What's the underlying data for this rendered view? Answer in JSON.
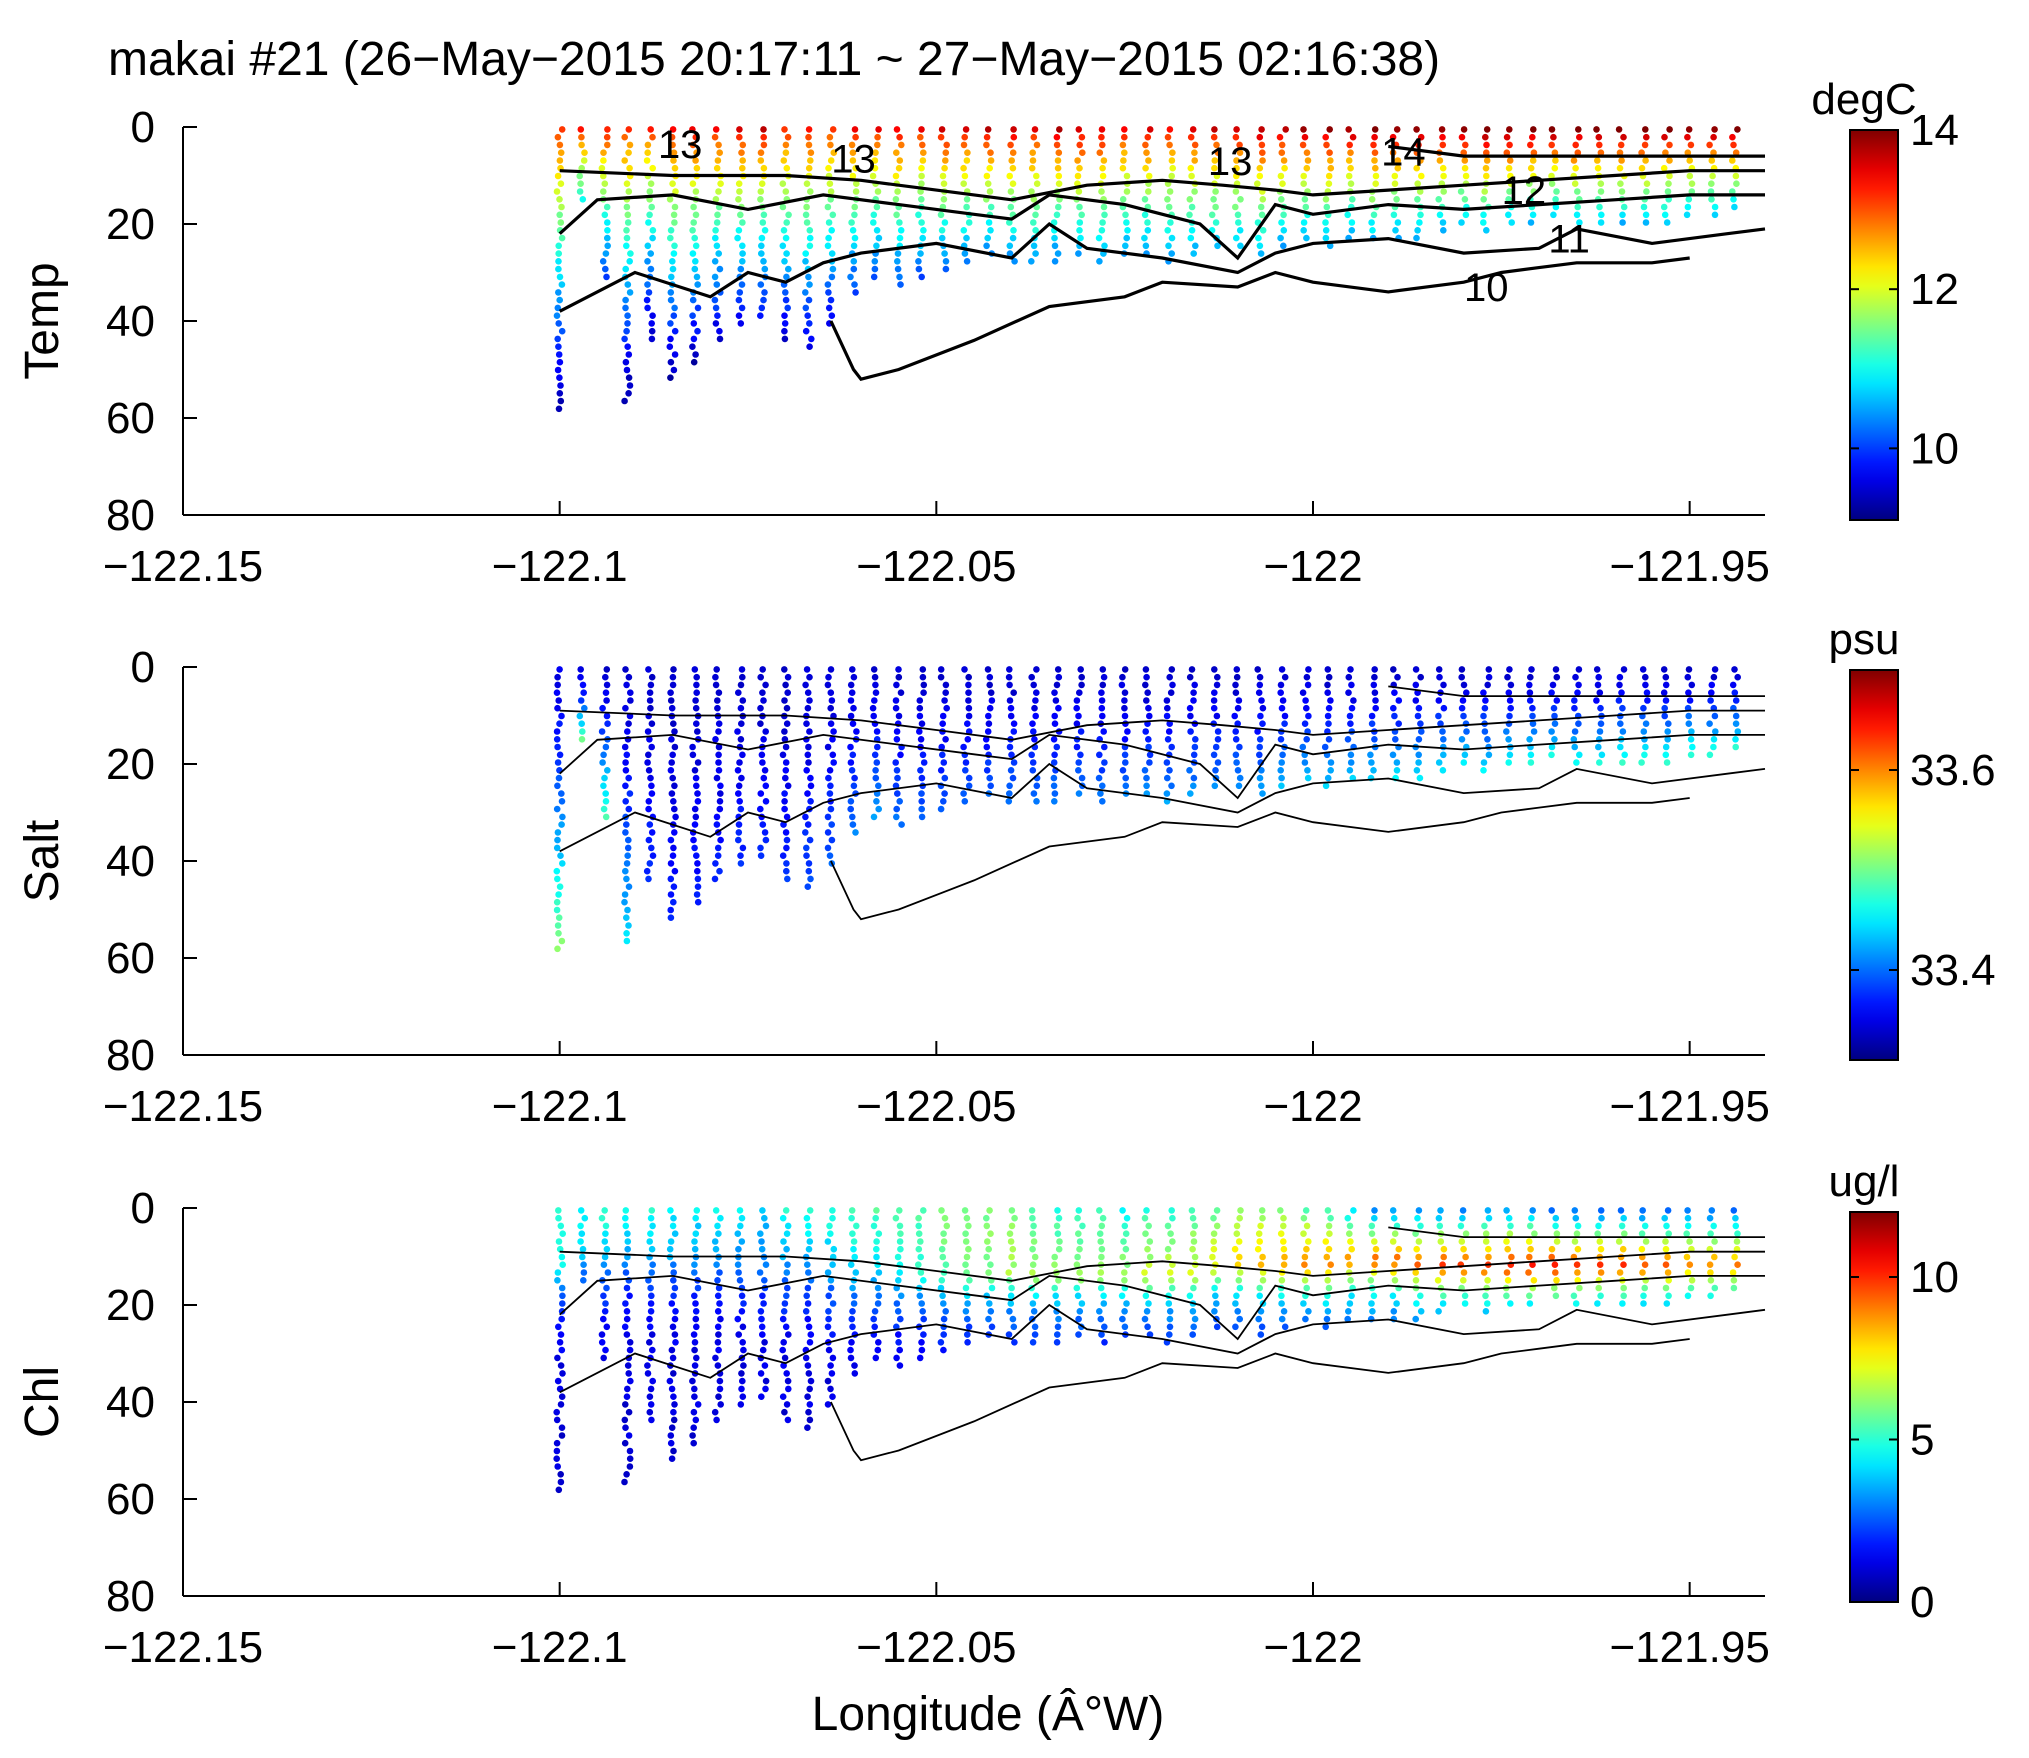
{
  "chart_data": {
    "type": "scatter",
    "title": "makai #21 (26−May−2015 20:17:11 ~ 27−May−2015 02:16:38)",
    "xlabel": "Longitude (Â°W)",
    "shared_x": {
      "range": [
        -122.15,
        -121.94
      ],
      "ticks": [
        -122.15,
        -122.1,
        -122.05,
        -122.0,
        -121.95
      ],
      "tick_labels": [
        "−122.15",
        "−122.1",
        "−122.05",
        "−122",
        "−121.95"
      ]
    },
    "profile_longitudes": [
      -122.1,
      -122.097,
      -122.094,
      -122.091,
      -122.088,
      -122.085,
      -122.082,
      -122.079,
      -122.076,
      -122.073,
      -122.07,
      -122.067,
      -122.064,
      -122.061,
      -122.058,
      -122.055,
      -122.052,
      -122.049,
      -122.046,
      -122.043,
      -122.04,
      -122.037,
      -122.034,
      -122.031,
      -122.028,
      -122.025,
      -122.022,
      -122.019,
      -122.016,
      -122.013,
      -122.01,
      -122.007,
      -122.004,
      -122.001,
      -121.998,
      -121.995,
      -121.992,
      -121.989,
      -121.986,
      -121.983,
      -121.98,
      -121.977,
      -121.974,
      -121.971,
      -121.968,
      -121.965,
      -121.962,
      -121.959,
      -121.956,
      -121.953,
      -121.95,
      -121.947,
      -121.944
    ],
    "profile_max_depth": [
      59,
      15,
      32,
      57,
      45,
      52,
      49,
      45,
      42,
      40,
      44,
      46,
      42,
      35,
      32,
      34,
      31,
      30,
      28,
      27,
      29,
      29,
      28,
      27,
      29,
      27,
      27,
      28,
      27,
      26,
      26,
      27,
      25,
      24,
      25,
      23,
      24,
      23,
      23,
      22,
      21,
      22,
      21,
      20,
      19,
      21,
      21,
      20,
      20,
      20,
      19,
      19,
      18
    ],
    "panels": [
      {
        "ylabel": "Temp",
        "yrange": [
          0,
          80
        ],
        "yticks": [
          0,
          20,
          40,
          60,
          80
        ],
        "ytick_labels": [
          "0",
          "20",
          "40",
          "60",
          "80"
        ],
        "colorbar": {
          "unit": "degC",
          "range": [
            9.1,
            14
          ],
          "ticks": [
            10,
            12,
            14
          ],
          "tick_labels": [
            "10",
            "12",
            "14"
          ]
        },
        "profile_surface": [
          13.4,
          13.5,
          13.5,
          13.3,
          13.4,
          13.5,
          13.6,
          13.6,
          13.7,
          13.8,
          13.4,
          13.5,
          13.4,
          13.6,
          13.6,
          13.7,
          13.6,
          13.8,
          13.7,
          13.9,
          13.8,
          13.7,
          13.9,
          13.9,
          13.8,
          13.6,
          13.7,
          13.5,
          13.7,
          13.8,
          13.9,
          14.0,
          14.0,
          14.1,
          14.1,
          14.1,
          14.2,
          14.2,
          14.2,
          14.2,
          14.3,
          14.3,
          14.3,
          14.3,
          14.3,
          14.3,
          14.3,
          14.3,
          14.3,
          14.3,
          14.3,
          14.3,
          14.3
        ],
        "profile_min": [
          9.2,
          11.0,
          10.0,
          9.2,
          9.3,
          9.3,
          9.3,
          9.4,
          9.5,
          9.6,
          9.5,
          9.5,
          9.6,
          9.9,
          10.0,
          10.0,
          10.1,
          10.2,
          10.3,
          10.3,
          10.3,
          10.4,
          10.3,
          10.4,
          10.4,
          10.4,
          10.4,
          10.4,
          10.5,
          10.5,
          10.5,
          10.5,
          10.5,
          10.5,
          10.5,
          10.5,
          10.5,
          10.5,
          10.5,
          10.5,
          10.5,
          10.6,
          10.6,
          10.6,
          10.6,
          10.6,
          10.6,
          10.6,
          10.6,
          10.6,
          10.6,
          10.6,
          10.6
        ],
        "contour_labels": [
          {
            "text": "13",
            "x": -122.084,
            "y": 3.5
          },
          {
            "text": "13",
            "x": -122.061,
            "y": 6.5
          },
          {
            "text": "13",
            "x": -122.011,
            "y": 7
          },
          {
            "text": "14",
            "x": -121.988,
            "y": 5
          },
          {
            "text": "12",
            "x": -121.972,
            "y": 13
          },
          {
            "text": "11",
            "x": -121.966,
            "y": 23
          },
          {
            "text": "10",
            "x": -121.977,
            "y": 33
          }
        ]
      },
      {
        "ylabel": "Salt",
        "yrange": [
          0,
          80
        ],
        "yticks": [
          0,
          20,
          40,
          60,
          80
        ],
        "ytick_labels": [
          "0",
          "20",
          "40",
          "60",
          "80"
        ],
        "colorbar": {
          "unit": "psu",
          "range": [
            33.31,
            33.7
          ],
          "ticks": [
            33.4,
            33.6
          ],
          "tick_labels": [
            "33.4",
            "33.6"
          ]
        },
        "profile_surface": [
          33.35,
          33.34,
          33.34,
          33.34,
          33.34,
          33.34,
          33.34,
          33.34,
          33.34,
          33.34,
          33.34,
          33.34,
          33.34,
          33.34,
          33.34,
          33.34,
          33.34,
          33.34,
          33.34,
          33.34,
          33.34,
          33.34,
          33.34,
          33.34,
          33.34,
          33.34,
          33.34,
          33.34,
          33.34,
          33.34,
          33.34,
          33.34,
          33.34,
          33.34,
          33.34,
          33.34,
          33.34,
          33.34,
          33.34,
          33.34,
          33.34,
          33.34,
          33.34,
          33.34,
          33.34,
          33.34,
          33.34,
          33.34,
          33.34,
          33.34,
          33.34,
          33.34,
          33.34
        ],
        "profile_max": [
          33.52,
          33.5,
          33.5,
          33.45,
          33.38,
          33.37,
          33.37,
          33.37,
          33.38,
          33.38,
          33.38,
          33.39,
          33.4,
          33.41,
          33.43,
          33.41,
          33.4,
          33.4,
          33.4,
          33.4,
          33.41,
          33.41,
          33.41,
          33.41,
          33.41,
          33.41,
          33.42,
          33.42,
          33.42,
          33.42,
          33.42,
          33.43,
          33.44,
          33.44,
          33.44,
          33.44,
          33.45,
          33.45,
          33.45,
          33.46,
          33.46,
          33.46,
          33.47,
          33.47,
          33.47,
          33.47,
          33.48,
          33.48,
          33.48,
          33.48,
          33.49,
          33.49,
          33.49
        ]
      },
      {
        "ylabel": "Chl",
        "yrange": [
          0,
          80
        ],
        "yticks": [
          0,
          20,
          40,
          60,
          80
        ],
        "ytick_labels": [
          "0",
          "20",
          "40",
          "60",
          "80"
        ],
        "colorbar": {
          "unit": "ug/l",
          "range": [
            0,
            12
          ],
          "ticks": [
            0,
            5,
            10
          ],
          "tick_labels": [
            "0",
            "5",
            "10"
          ]
        },
        "profile_surface": [
          5,
          4.5,
          5,
          5,
          5,
          4.5,
          4.5,
          4.5,
          4.5,
          4,
          5,
          5,
          5,
          5.5,
          5.5,
          5.5,
          5.5,
          6,
          6,
          6,
          6,
          5.5,
          5,
          5,
          5,
          4.5,
          5,
          5,
          5.5,
          5.5,
          6,
          6,
          6,
          5.5,
          5,
          4,
          3,
          3,
          3,
          3,
          3,
          3,
          3,
          3,
          2.5,
          2.5,
          2.5,
          2.5,
          2.5,
          2.5,
          2.5,
          2.5,
          2.5
        ],
        "profile_peak": [
          4.5,
          4,
          4,
          3.5,
          3.5,
          3.5,
          3,
          3,
          3,
          3,
          3,
          3,
          3.5,
          4,
          4,
          4.5,
          5,
          5.5,
          6,
          6,
          6.5,
          6.5,
          6.5,
          6.5,
          6.5,
          6.5,
          7,
          7,
          7,
          7.5,
          8,
          8.5,
          8.5,
          9,
          9,
          9,
          9.5,
          9.5,
          9.5,
          10,
          10,
          10,
          10.5,
          10.5,
          10.5,
          10,
          10,
          10,
          9.5,
          9.5,
          9,
          9,
          9
        ],
        "profile_peak_depth": [
          12,
          10,
          10,
          10,
          10,
          10,
          12,
          12,
          12,
          12,
          14,
          14,
          14,
          14,
          14,
          14,
          14,
          14,
          14,
          14,
          14,
          14,
          14,
          14,
          14,
          14,
          14,
          14,
          14,
          12,
          12,
          12,
          12,
          12,
          12,
          11,
          11,
          11,
          12,
          12,
          12,
          12,
          12,
          12,
          12,
          12,
          12,
          12,
          12,
          12,
          12,
          12,
          12
        ]
      }
    ],
    "contours": [
      {
        "level": 13,
        "x": [
          -122.1,
          -122.085,
          -122.07,
          -122.06,
          -122.05,
          -122.04,
          -122.03,
          -122.02,
          -122.012,
          -122.005,
          -122.0,
          -121.99,
          -121.98,
          -121.97,
          -121.96,
          -121.95,
          -121.94
        ],
        "y": [
          9,
          10,
          10,
          11,
          13,
          15,
          12,
          11,
          12,
          13,
          14,
          13,
          12,
          11,
          10,
          9,
          9
        ]
      },
      {
        "level": 12,
        "x": [
          -122.1,
          -122.095,
          -122.085,
          -122.075,
          -122.065,
          -122.055,
          -122.045,
          -122.04,
          -122.035,
          -122.025,
          -122.015,
          -122.01,
          -122.005,
          -122.0,
          -121.99,
          -121.98,
          -121.97,
          -121.96,
          -121.95,
          -121.94
        ],
        "y": [
          22,
          15,
          14,
          17,
          14,
          16,
          18,
          19,
          14,
          16,
          20,
          27,
          16,
          18,
          16,
          17,
          16,
          15,
          14,
          14
        ]
      },
      {
        "level": 11,
        "x": [
          -122.1,
          -122.09,
          -122.08,
          -122.075,
          -122.07,
          -122.065,
          -122.06,
          -122.05,
          -122.04,
          -122.035,
          -122.03,
          -122.02,
          -122.01,
          -122.005,
          -122.0,
          -121.99,
          -121.98,
          -121.97,
          -121.965,
          -121.955,
          -121.945,
          -121.94
        ],
        "y": [
          38,
          30,
          35,
          30,
          32,
          28,
          26,
          24,
          27,
          20,
          25,
          27,
          30,
          26,
          24,
          23,
          26,
          25,
          21,
          24,
          22,
          21
        ]
      },
      {
        "level": 10,
        "x": [
          -122.064,
          -122.061,
          -122.06,
          -122.055,
          -122.045,
          -122.035,
          -122.025,
          -122.02,
          -122.01,
          -122.005,
          -122.0,
          -121.99,
          -121.98,
          -121.975,
          -121.97,
          -121.965,
          -121.955,
          -121.95
        ],
        "y": [
          40,
          50,
          52,
          50,
          44,
          37,
          35,
          32,
          33,
          30,
          32,
          34,
          32,
          30,
          29,
          28,
          28,
          27
        ]
      },
      {
        "level": 14,
        "x": [
          -121.99,
          -121.98,
          -121.97,
          -121.96,
          -121.95,
          -121.94
        ],
        "y": [
          4,
          6,
          6,
          6,
          6,
          6
        ]
      }
    ]
  }
}
